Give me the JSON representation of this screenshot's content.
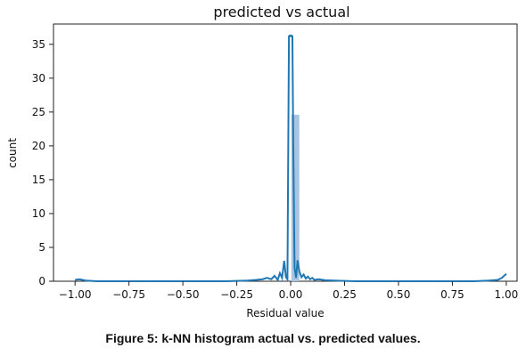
{
  "caption": "Figure 5: k-NN histogram actual vs. predicted values.",
  "chart_data": {
    "type": "histogram",
    "title": "predicted vs actual",
    "xlabel": "Residual value",
    "ylabel": "count",
    "xlim": [
      -1.1,
      1.05
    ],
    "ylim": [
      0,
      38
    ],
    "x_ticks": [
      -1.0,
      -0.75,
      -0.5,
      -0.25,
      0.0,
      0.25,
      0.5,
      0.75,
      1.0
    ],
    "x_tick_labels": [
      "−1.00",
      "−0.75",
      "−0.50",
      "−0.25",
      "0.00",
      "0.25",
      "0.50",
      "0.75",
      "1.00"
    ],
    "y_ticks": [
      0,
      5,
      10,
      15,
      20,
      25,
      30,
      35
    ],
    "y_tick_labels": [
      "0",
      "5",
      "10",
      "15",
      "20",
      "25",
      "30",
      "35"
    ],
    "bar_color": "#a9c4e0",
    "line_color": "#1f77b4",
    "bars": [
      {
        "x0": 0.003,
        "x1": 0.04,
        "y": 24.6
      }
    ],
    "kde_line": {
      "x": [
        -1.0,
        -0.98,
        -0.95,
        -0.9,
        -0.8,
        -0.6,
        -0.4,
        -0.3,
        -0.25,
        -0.2,
        -0.16,
        -0.13,
        -0.11,
        -0.09,
        -0.075,
        -0.06,
        -0.05,
        -0.04,
        -0.03,
        -0.022,
        -0.015,
        -0.008,
        -0.004,
        0.0,
        0.004,
        0.008,
        0.012,
        0.018,
        0.025,
        0.032,
        0.04,
        0.05,
        0.06,
        0.07,
        0.08,
        0.09,
        0.1,
        0.11,
        0.13,
        0.16,
        0.2,
        0.25,
        0.3,
        0.5,
        0.7,
        0.85,
        0.92,
        0.96,
        0.98,
        1.0
      ],
      "y": [
        0.2,
        0.3,
        0.1,
        0.0,
        0.0,
        0.0,
        0.0,
        0.0,
        0.05,
        0.1,
        0.2,
        0.3,
        0.5,
        0.3,
        0.8,
        0.2,
        1.2,
        0.5,
        3.0,
        0.6,
        0.3,
        36.2,
        36.3,
        36.2,
        36.3,
        36.2,
        20.0,
        2.0,
        0.5,
        3.1,
        1.5,
        0.6,
        1.0,
        0.4,
        0.7,
        0.3,
        0.5,
        0.2,
        0.3,
        0.15,
        0.1,
        0.05,
        0.0,
        0.0,
        0.0,
        0.0,
        0.1,
        0.2,
        0.5,
        1.1
      ]
    }
  }
}
